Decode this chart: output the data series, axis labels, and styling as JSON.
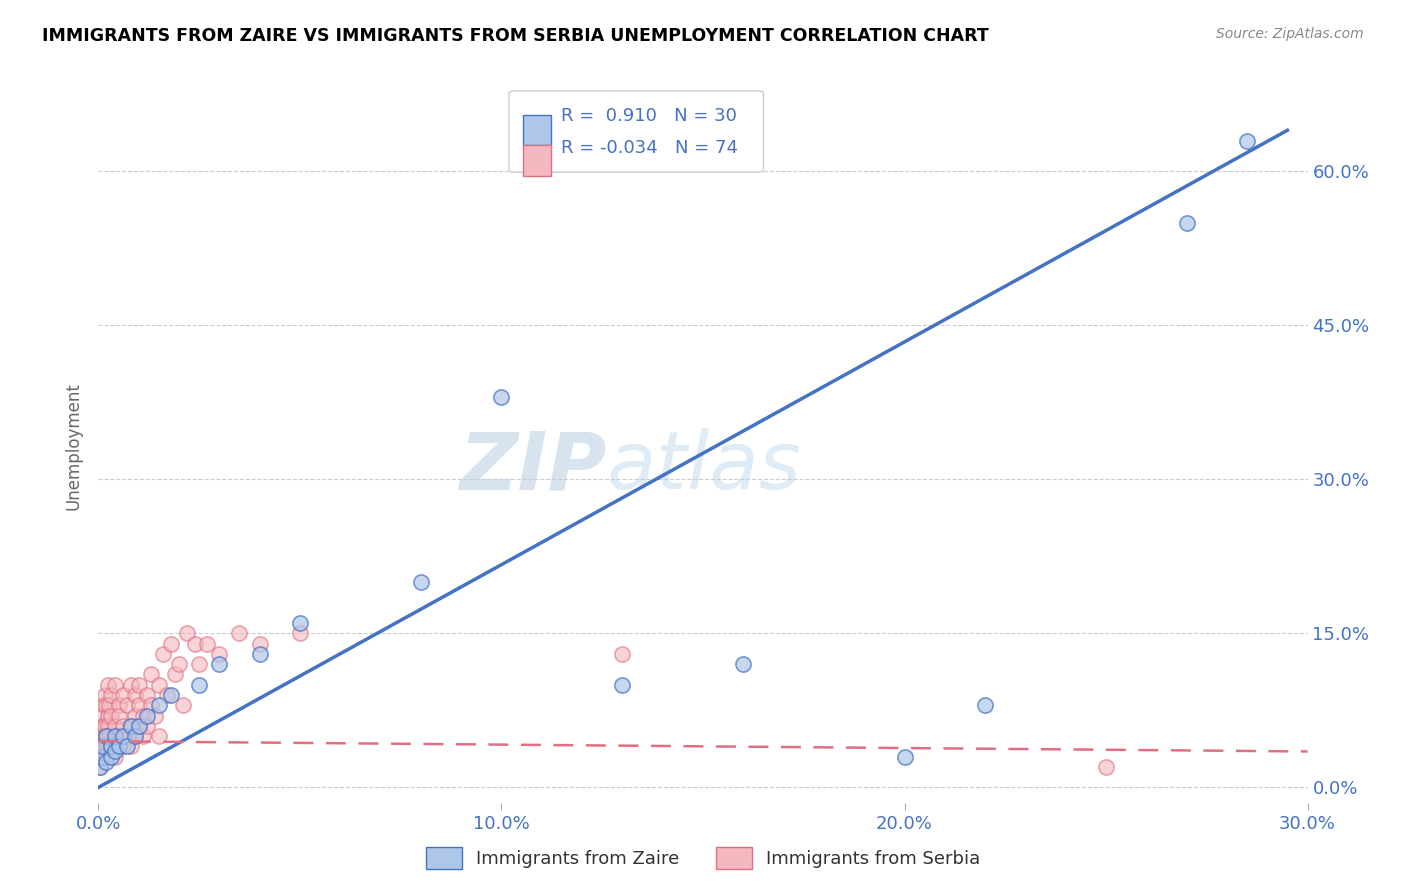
{
  "title": "IMMIGRANTS FROM ZAIRE VS IMMIGRANTS FROM SERBIA UNEMPLOYMENT CORRELATION CHART",
  "source": "Source: ZipAtlas.com",
  "ylabel": "Unemployment",
  "x_tick_labels": [
    "0.0%",
    "10.0%",
    "20.0%",
    "30.0%"
  ],
  "y_tick_labels_right": [
    "0.0%",
    "15.0%",
    "30.0%",
    "45.0%",
    "60.0%"
  ],
  "xlim": [
    0.0,
    0.3
  ],
  "ylim": [
    -0.015,
    0.68
  ],
  "legend_entries": [
    {
      "label": "Immigrants from Zaire",
      "color": "#aec6e8",
      "border": "#4472c4",
      "R": "0.910",
      "N": "30"
    },
    {
      "label": "Immigrants from Serbia",
      "color": "#f4b8c1",
      "border": "#e07080",
      "R": "-0.034",
      "N": "74"
    }
  ],
  "zaire_scatter_x": [
    0.0005,
    0.001,
    0.001,
    0.002,
    0.002,
    0.003,
    0.003,
    0.004,
    0.004,
    0.005,
    0.006,
    0.007,
    0.008,
    0.009,
    0.01,
    0.012,
    0.015,
    0.018,
    0.025,
    0.03,
    0.04,
    0.05,
    0.08,
    0.1,
    0.13,
    0.16,
    0.2,
    0.22,
    0.27,
    0.285
  ],
  "zaire_scatter_y": [
    0.02,
    0.03,
    0.04,
    0.025,
    0.05,
    0.03,
    0.04,
    0.035,
    0.05,
    0.04,
    0.05,
    0.04,
    0.06,
    0.05,
    0.06,
    0.07,
    0.08,
    0.09,
    0.1,
    0.12,
    0.13,
    0.16,
    0.2,
    0.38,
    0.1,
    0.12,
    0.03,
    0.08,
    0.55,
    0.63
  ],
  "serbia_scatter_x": [
    0.0002,
    0.0003,
    0.0004,
    0.0005,
    0.0005,
    0.0006,
    0.0007,
    0.0008,
    0.0008,
    0.001,
    0.001,
    0.0012,
    0.0013,
    0.0014,
    0.0015,
    0.0016,
    0.0017,
    0.0018,
    0.002,
    0.002,
    0.0022,
    0.0023,
    0.0024,
    0.0025,
    0.0026,
    0.0027,
    0.003,
    0.003,
    0.003,
    0.004,
    0.004,
    0.004,
    0.005,
    0.005,
    0.005,
    0.006,
    0.006,
    0.006,
    0.007,
    0.007,
    0.008,
    0.008,
    0.008,
    0.009,
    0.009,
    0.009,
    0.01,
    0.01,
    0.01,
    0.011,
    0.011,
    0.012,
    0.012,
    0.013,
    0.013,
    0.014,
    0.015,
    0.015,
    0.016,
    0.017,
    0.018,
    0.019,
    0.02,
    0.021,
    0.022,
    0.024,
    0.025,
    0.027,
    0.03,
    0.035,
    0.04,
    0.05,
    0.13,
    0.25
  ],
  "serbia_scatter_y": [
    0.03,
    0.04,
    0.02,
    0.05,
    0.03,
    0.04,
    0.06,
    0.03,
    0.05,
    0.07,
    0.04,
    0.06,
    0.08,
    0.05,
    0.04,
    0.09,
    0.06,
    0.03,
    0.05,
    0.08,
    0.04,
    0.07,
    0.06,
    0.1,
    0.05,
    0.08,
    0.04,
    0.07,
    0.09,
    0.06,
    0.1,
    0.03,
    0.08,
    0.05,
    0.07,
    0.06,
    0.09,
    0.04,
    0.05,
    0.08,
    0.06,
    0.1,
    0.04,
    0.07,
    0.09,
    0.05,
    0.08,
    0.06,
    0.1,
    0.07,
    0.05,
    0.09,
    0.06,
    0.08,
    0.11,
    0.07,
    0.1,
    0.05,
    0.13,
    0.09,
    0.14,
    0.11,
    0.12,
    0.08,
    0.15,
    0.14,
    0.12,
    0.14,
    0.13,
    0.15,
    0.14,
    0.15,
    0.13,
    0.02
  ],
  "zaire_trend_x": [
    0.0,
    0.295
  ],
  "zaire_trend_y": [
    0.0,
    0.64
  ],
  "serbia_trend_x": [
    0.0,
    0.3
  ],
  "serbia_trend_y": [
    0.045,
    0.035
  ],
  "watermark_zip": "ZIP",
  "watermark_atlas": "atlas",
  "bg_color": "#ffffff",
  "grid_color": "#cccccc",
  "title_color": "#000000",
  "axis_label_color": "#4472c4",
  "scatter_zaire_color": "#aec6e8",
  "scatter_serbia_color": "#f4b8c1",
  "trend_zaire_color": "#4472c4",
  "trend_serbia_color": "#e07080"
}
